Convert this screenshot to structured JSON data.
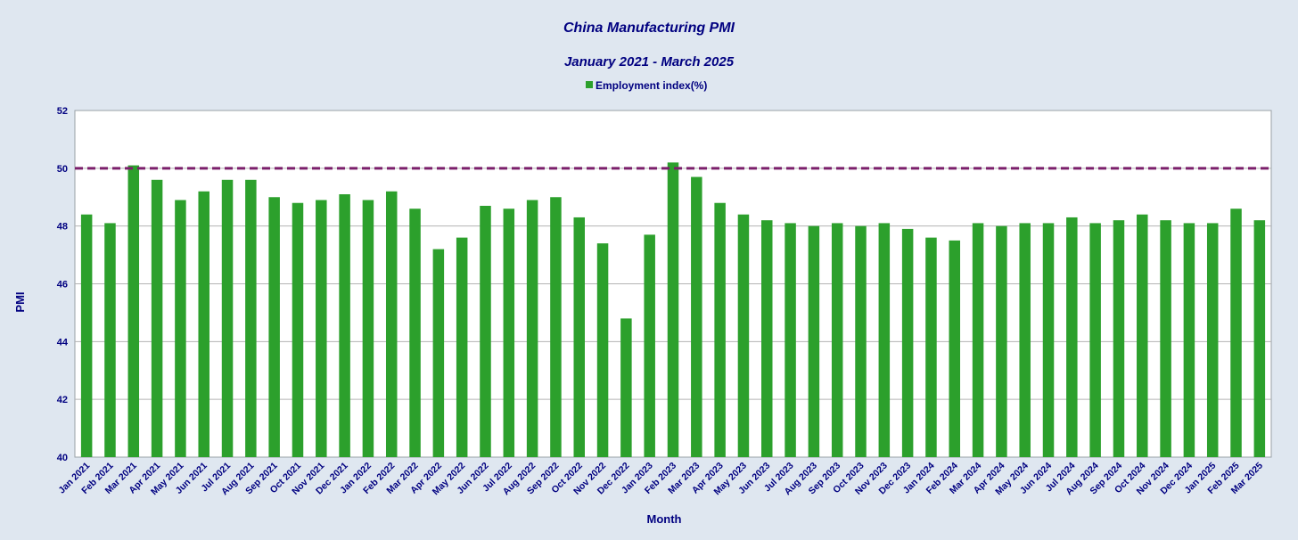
{
  "chart_data": {
    "type": "bar",
    "title": "China Manufacturing PMI",
    "subtitle": "January 2021 - March 2025",
    "xlabel": "Month",
    "ylabel": "PMI",
    "ylim": [
      40,
      52
    ],
    "yticks": [
      40,
      42,
      44,
      46,
      48,
      50,
      52
    ],
    "grid": true,
    "legend_position": "top-center",
    "reference_line": {
      "value": 50,
      "color": "#7b1f6b",
      "style": "dashed"
    },
    "bar_color": "#2ca02c",
    "categories": [
      "Jan 2021",
      "Feb 2021",
      "Mar 2021",
      "Apr 2021",
      "May 2021",
      "Jun 2021",
      "Jul 2021",
      "Aug 2021",
      "Sep 2021",
      "Oct 2021",
      "Nov 2021",
      "Dec 2021",
      "Jan 2022",
      "Feb 2022",
      "Mar 2022",
      "Apr 2022",
      "May 2022",
      "Jun 2022",
      "Jul 2022",
      "Aug 2022",
      "Sep 2022",
      "Oct 2022",
      "Nov 2022",
      "Dec 2022",
      "Jan 2023",
      "Feb 2023",
      "Mar 2023",
      "Apr 2023",
      "May 2023",
      "Jun 2023",
      "Jul 2023",
      "Aug 2023",
      "Sep 2023",
      "Oct 2023",
      "Nov 2023",
      "Dec 2023",
      "Jan 2024",
      "Feb 2024",
      "Mar 2024",
      "Apr 2024",
      "May 2024",
      "Jun 2024",
      "Jul 2024",
      "Aug 2024",
      "Sep 2024",
      "Oct 2024",
      "Nov 2024",
      "Dec 2024",
      "Jan 2025",
      "Feb 2025",
      "Mar 2025"
    ],
    "series": [
      {
        "name": "Employment index(%)",
        "values": [
          48.4,
          48.1,
          50.1,
          49.6,
          48.9,
          49.2,
          49.6,
          49.6,
          49.0,
          48.8,
          48.9,
          49.1,
          48.9,
          49.2,
          48.6,
          47.2,
          47.6,
          48.7,
          48.6,
          48.9,
          49.0,
          48.3,
          47.4,
          44.8,
          47.7,
          50.2,
          49.7,
          48.8,
          48.4,
          48.2,
          48.1,
          48.0,
          48.1,
          48.0,
          48.1,
          47.9,
          47.6,
          47.5,
          48.1,
          48.0,
          48.1,
          48.1,
          48.3,
          48.1,
          48.2,
          48.4,
          48.2,
          48.1,
          48.1,
          48.6,
          48.2
        ]
      }
    ]
  }
}
